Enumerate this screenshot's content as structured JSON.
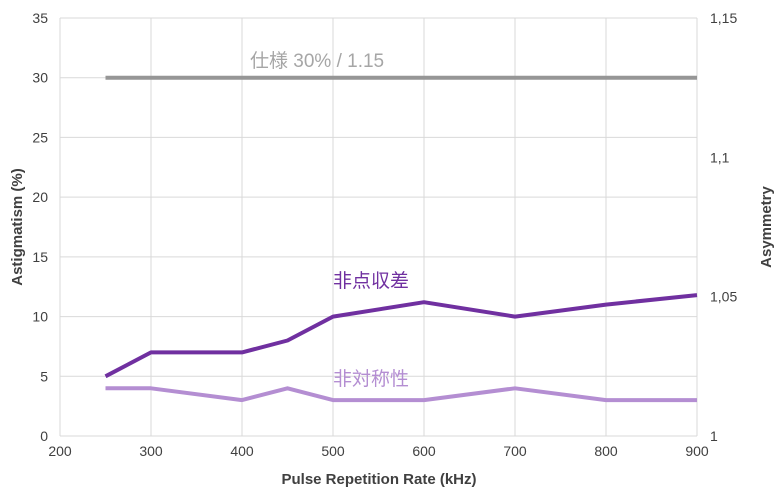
{
  "chart_data": {
    "type": "line",
    "xlabel": "Pulse Repetition Rate (kHz)",
    "ylabel": "Astigmatism (%)",
    "y2label": "Asymmetry",
    "xlim": [
      200,
      900
    ],
    "ylim": [
      0,
      35
    ],
    "y2lim": [
      1,
      1.15
    ],
    "grid": true,
    "x_ticks": [
      200,
      300,
      400,
      500,
      600,
      700,
      800,
      900
    ],
    "y_ticks": [
      0,
      5,
      10,
      15,
      20,
      25,
      30,
      35
    ],
    "y2_ticks": [
      {
        "value": 1,
        "label": "1"
      },
      {
        "value": 1.05,
        "label": "1,05"
      },
      {
        "value": 1.1,
        "label": "1,1"
      },
      {
        "value": 1.15,
        "label": "1,15"
      }
    ],
    "series": [
      {
        "key": "spec",
        "color": "#969696",
        "axis": "left",
        "x": [
          250,
          900
        ],
        "y": [
          30,
          30
        ]
      },
      {
        "key": "astigmatism",
        "color": "#7030a0",
        "axis": "left",
        "x": [
          250,
          300,
          400,
          450,
          500,
          600,
          700,
          800,
          900
        ],
        "y": [
          5,
          7,
          7,
          8,
          10,
          11.2,
          10,
          11,
          11.8
        ]
      },
      {
        "key": "asymmetry",
        "color": "#b48ed2",
        "axis": "right",
        "x": [
          250,
          300,
          400,
          450,
          500,
          600,
          700,
          800,
          900
        ],
        "y": [
          1.0171,
          1.0171,
          1.0129,
          1.0171,
          1.0129,
          1.0129,
          1.0171,
          1.0129,
          1.0129
        ]
      }
    ],
    "annotations": [
      {
        "key": "spec",
        "text": "仕様 30% / 1.15",
        "color": "#a6a6a6"
      },
      {
        "key": "astigmatism",
        "text": "非点収差",
        "color": "#7030a0"
      },
      {
        "key": "asymmetry",
        "text": "非対称性",
        "color": "#b48ed2"
      }
    ]
  }
}
